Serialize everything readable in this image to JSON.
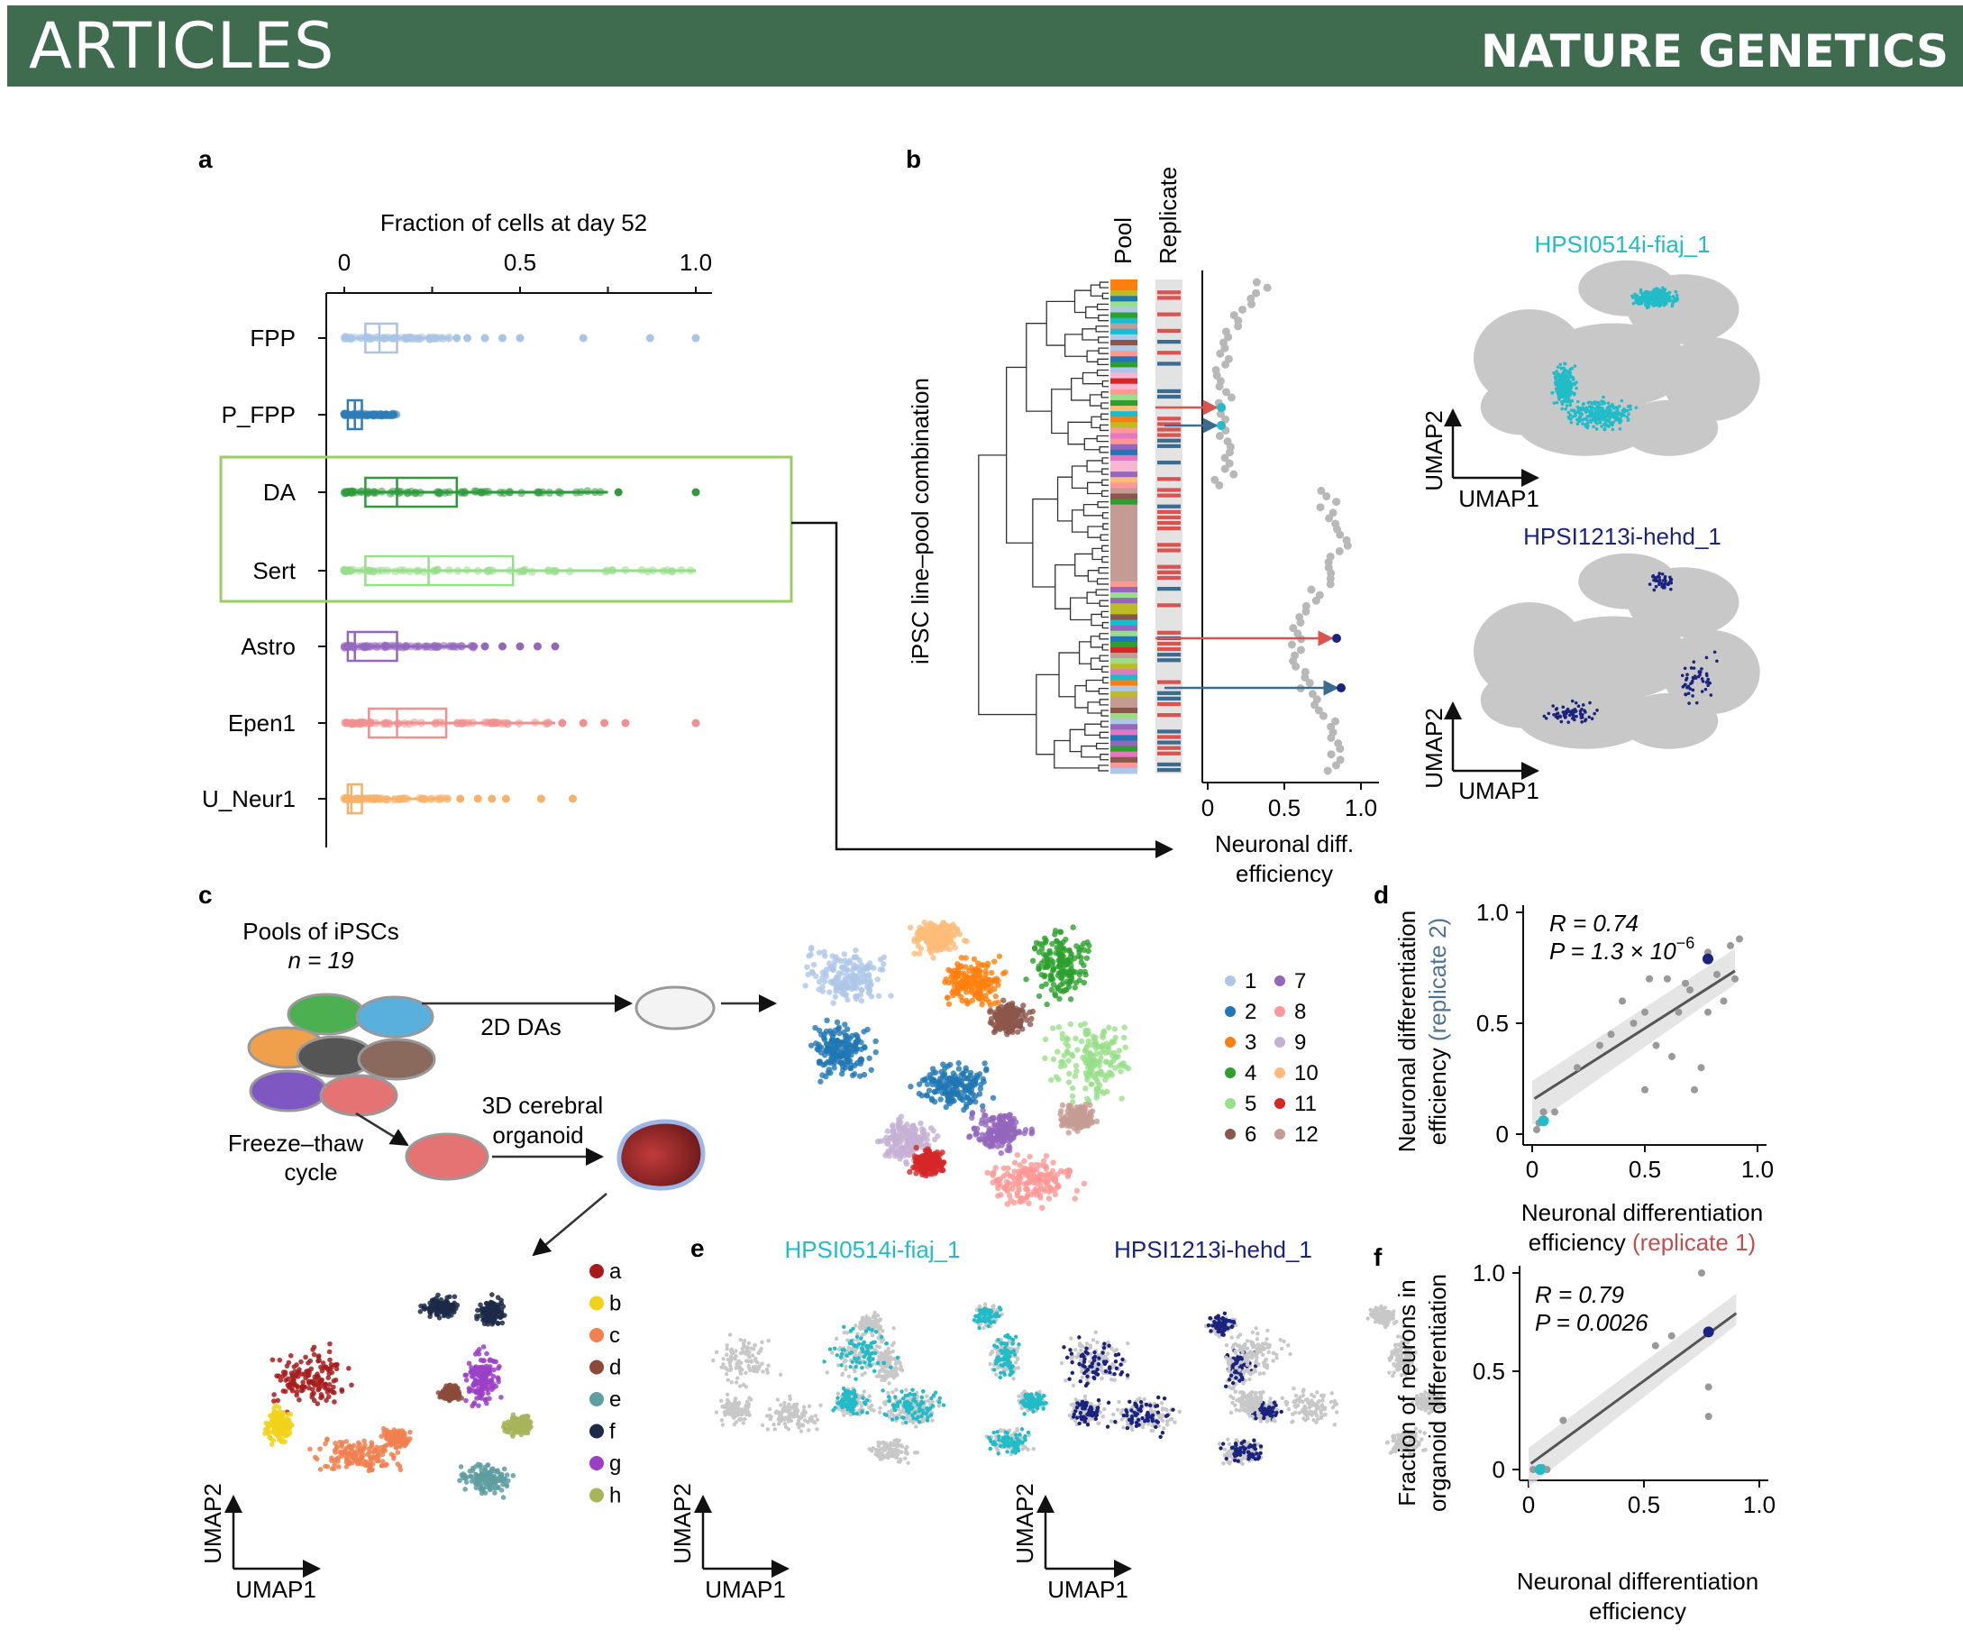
{
  "header": {
    "section": "ARTICLES",
    "journal": "NATURE GENETICS"
  },
  "colors": {
    "header_bg": "#3f6b4f",
    "highlight_box": "#9ccc65",
    "pool_red": "#d9534f",
    "replicate_blue": "#3b6b8f",
    "cyan": "#22bcc8",
    "navy": "#1a237e",
    "grey": "#c8c8c8"
  },
  "panels": {
    "a": {
      "letter": "a",
      "title": "Fraction of cells at day 52",
      "ticks": [
        "0",
        "0.5",
        "1.0"
      ],
      "rows": [
        {
          "label": "FPP",
          "color": "#a9c4e4",
          "q1": 0.06,
          "median": 0.1,
          "q3": 0.15,
          "wlo": 0,
          "whi": 0.3,
          "out": [
            0.32,
            0.35,
            0.4,
            0.45,
            0.5,
            0.68,
            0.87,
            1.0
          ]
        },
        {
          "label": "P_FPP",
          "color": "#2f7bb6",
          "q1": 0.01,
          "median": 0.03,
          "q3": 0.05,
          "wlo": 0,
          "whi": 0.15,
          "out": []
        },
        {
          "label": "DA",
          "color": "#2e9a3a",
          "q1": 0.06,
          "median": 0.15,
          "q3": 0.32,
          "wlo": 0,
          "whi": 0.75,
          "out": [
            0.78,
            1.0
          ]
        },
        {
          "label": "Sert",
          "color": "#98dd8b",
          "q1": 0.06,
          "median": 0.24,
          "q3": 0.48,
          "wlo": 0,
          "whi": 1.0,
          "out": []
        },
        {
          "label": "Astro",
          "color": "#9467bd",
          "q1": 0.01,
          "median": 0.03,
          "q3": 0.15,
          "wlo": 0,
          "whi": 0.38,
          "out": [
            0.4,
            0.45,
            0.5,
            0.55,
            0.6
          ]
        },
        {
          "label": "Epen1",
          "color": "#f0908f",
          "q1": 0.07,
          "median": 0.15,
          "q3": 0.29,
          "wlo": 0,
          "whi": 0.6,
          "out": [
            0.62,
            0.68,
            0.74,
            0.8,
            1.0
          ]
        },
        {
          "label": "U_Neur1",
          "color": "#f6b26b",
          "q1": 0.01,
          "median": 0.02,
          "q3": 0.05,
          "wlo": 0,
          "whi": 0.3,
          "out": [
            0.33,
            0.38,
            0.42,
            0.46,
            0.56,
            0.65
          ]
        }
      ]
    },
    "b": {
      "letter": "b",
      "y_label": "iPSC line–pool combination",
      "col_pool": "Pool",
      "col_replicate": "Replicate",
      "x_label_1": "Neuronal diff.",
      "x_label_2": "efficiency",
      "ticks": [
        "0",
        "0.5",
        "1.0"
      ],
      "umap_top_title": "HPSI0514i-fiaj_1",
      "umap_bottom_title": "HPSI1213i-hehd_1",
      "umap_x": "UMAP1",
      "umap_y": "UMAP2"
    },
    "c": {
      "letter": "c",
      "pools_1": "Pools of iPSCs",
      "pools_2": "n = 19",
      "step_2d": "2D DAs",
      "freeze_1": "Freeze–thaw",
      "freeze_2": "cycle",
      "organoid_1": "3D cerebral",
      "organoid_2": "organoid",
      "umap_x": "UMAP1",
      "umap_y": "UMAP2",
      "legend_numeric": [
        {
          "label": "1",
          "color": "#aec7e8"
        },
        {
          "label": "2",
          "color": "#1f77b4"
        },
        {
          "label": "3",
          "color": "#ff7f0e"
        },
        {
          "label": "4",
          "color": "#2ca02c"
        },
        {
          "label": "5",
          "color": "#98df8a"
        },
        {
          "label": "6",
          "color": "#8c564b"
        },
        {
          "label": "7",
          "color": "#9467bd"
        },
        {
          "label": "8",
          "color": "#ff9896"
        },
        {
          "label": "9",
          "color": "#c5b0d5"
        },
        {
          "label": "10",
          "color": "#ffbb78"
        },
        {
          "label": "11",
          "color": "#d62728"
        },
        {
          "label": "12",
          "color": "#c49c94"
        }
      ],
      "legend_letters": [
        {
          "label": "a",
          "color": "#a61c1c"
        },
        {
          "label": "b",
          "color": "#f1d21a"
        },
        {
          "label": "c",
          "color": "#f08050"
        },
        {
          "label": "d",
          "color": "#8c4b3a"
        },
        {
          "label": "e",
          "color": "#5f9ea0"
        },
        {
          "label": "f",
          "color": "#1c2a48"
        },
        {
          "label": "g",
          "color": "#9b3fc6"
        },
        {
          "label": "h",
          "color": "#a8b45a"
        }
      ]
    },
    "d": {
      "letter": "d",
      "r_text": "R = 0.74",
      "p_text": "P = 1.3 × 10",
      "p_exp": "−6",
      "y_label_1": "Neuronal differentiation",
      "y_label_2": "efficiency",
      "y_label_2b": "(replicate 2)",
      "x_label_1": "Neuronal differentiation",
      "x_label_2": "efficiency",
      "x_label_2b": "(replicate 1)",
      "ticks_x": [
        "0",
        "0.5",
        "1.0"
      ],
      "ticks_y": [
        "0",
        "0.5",
        "1.0"
      ]
    },
    "e": {
      "letter": "e",
      "title_left": "HPSI0514i-fiaj_1",
      "title_right": "HPSI1213i-hehd_1",
      "umap_x": "UMAP1",
      "umap_y": "UMAP2"
    },
    "f": {
      "letter": "f",
      "r_text": "R = 0.79",
      "p_text": "P = 0.0026",
      "y_label_1": "Fraction of neurons in",
      "y_label_2": "organoid differentiation",
      "x_label_1": "Neuronal differentiation",
      "x_label_2": "efficiency",
      "ticks_x": [
        "0",
        "0.5",
        "1.0"
      ],
      "ticks_y": [
        "0",
        "0.5",
        "1.0"
      ]
    }
  },
  "chart_data": [
    {
      "type": "box",
      "title": "Fraction of cells at day 52",
      "categories": [
        "FPP",
        "P_FPP",
        "DA",
        "Sert",
        "Astro",
        "Epen1",
        "U_Neur1"
      ],
      "xlim": [
        0,
        1.0
      ],
      "medians": [
        0.1,
        0.03,
        0.15,
        0.24,
        0.03,
        0.15,
        0.02
      ],
      "q1": [
        0.06,
        0.01,
        0.06,
        0.06,
        0.01,
        0.07,
        0.01
      ],
      "q3": [
        0.15,
        0.05,
        0.32,
        0.48,
        0.15,
        0.29,
        0.05
      ]
    },
    {
      "type": "scatter",
      "xlabel": "Neuronal differentiation efficiency (replicate 1)",
      "ylabel": "Neuronal differentiation efficiency (replicate 2)",
      "xlim": [
        0,
        1.0
      ],
      "ylim": [
        0,
        1.0
      ],
      "annotations": [
        "R = 0.74",
        "P = 1.3 × 10−6"
      ],
      "points": [
        [
          0.02,
          0.02
        ],
        [
          0.03,
          0.05
        ],
        [
          0.05,
          0.1
        ],
        [
          0.1,
          0.1
        ],
        [
          0.2,
          0.3
        ],
        [
          0.3,
          0.4
        ],
        [
          0.35,
          0.45
        ],
        [
          0.4,
          0.6
        ],
        [
          0.45,
          0.5
        ],
        [
          0.5,
          0.55
        ],
        [
          0.52,
          0.7
        ],
        [
          0.55,
          0.4
        ],
        [
          0.6,
          0.7
        ],
        [
          0.62,
          0.35
        ],
        [
          0.65,
          0.55
        ],
        [
          0.68,
          0.68
        ],
        [
          0.7,
          0.65
        ],
        [
          0.72,
          0.2
        ],
        [
          0.75,
          0.3
        ],
        [
          0.78,
          0.55
        ],
        [
          0.82,
          0.72
        ],
        [
          0.85,
          0.6
        ],
        [
          0.88,
          0.85
        ],
        [
          0.9,
          0.7
        ],
        [
          0.92,
          0.88
        ],
        [
          0.78,
          0.82
        ],
        [
          0.5,
          0.2
        ]
      ],
      "highlighted": [
        {
          "x": 0.78,
          "y": 0.79,
          "color": "#1a237e"
        },
        {
          "x": 0.05,
          "y": 0.06,
          "color": "#22bcc8"
        }
      ]
    },
    {
      "type": "scatter",
      "xlabel": "Neuronal differentiation efficiency",
      "ylabel": "Fraction of neurons in organoid differentiation",
      "xlim": [
        0,
        1.0
      ],
      "ylim": [
        0,
        1.0
      ],
      "annotations": [
        "R = 0.79",
        "P = 0.0026"
      ],
      "points": [
        [
          0.02,
          0.0
        ],
        [
          0.04,
          0.0
        ],
        [
          0.06,
          0.01
        ],
        [
          0.08,
          0.0
        ],
        [
          0.15,
          0.25
        ],
        [
          0.55,
          0.63
        ],
        [
          0.62,
          0.68
        ],
        [
          0.75,
          1.0
        ],
        [
          0.78,
          0.42
        ],
        [
          0.78,
          0.27
        ]
      ],
      "highlighted": [
        {
          "x": 0.78,
          "y": 0.7,
          "color": "#1a237e"
        },
        {
          "x": 0.05,
          "y": 0.0,
          "color": "#22bcc8"
        }
      ]
    }
  ]
}
